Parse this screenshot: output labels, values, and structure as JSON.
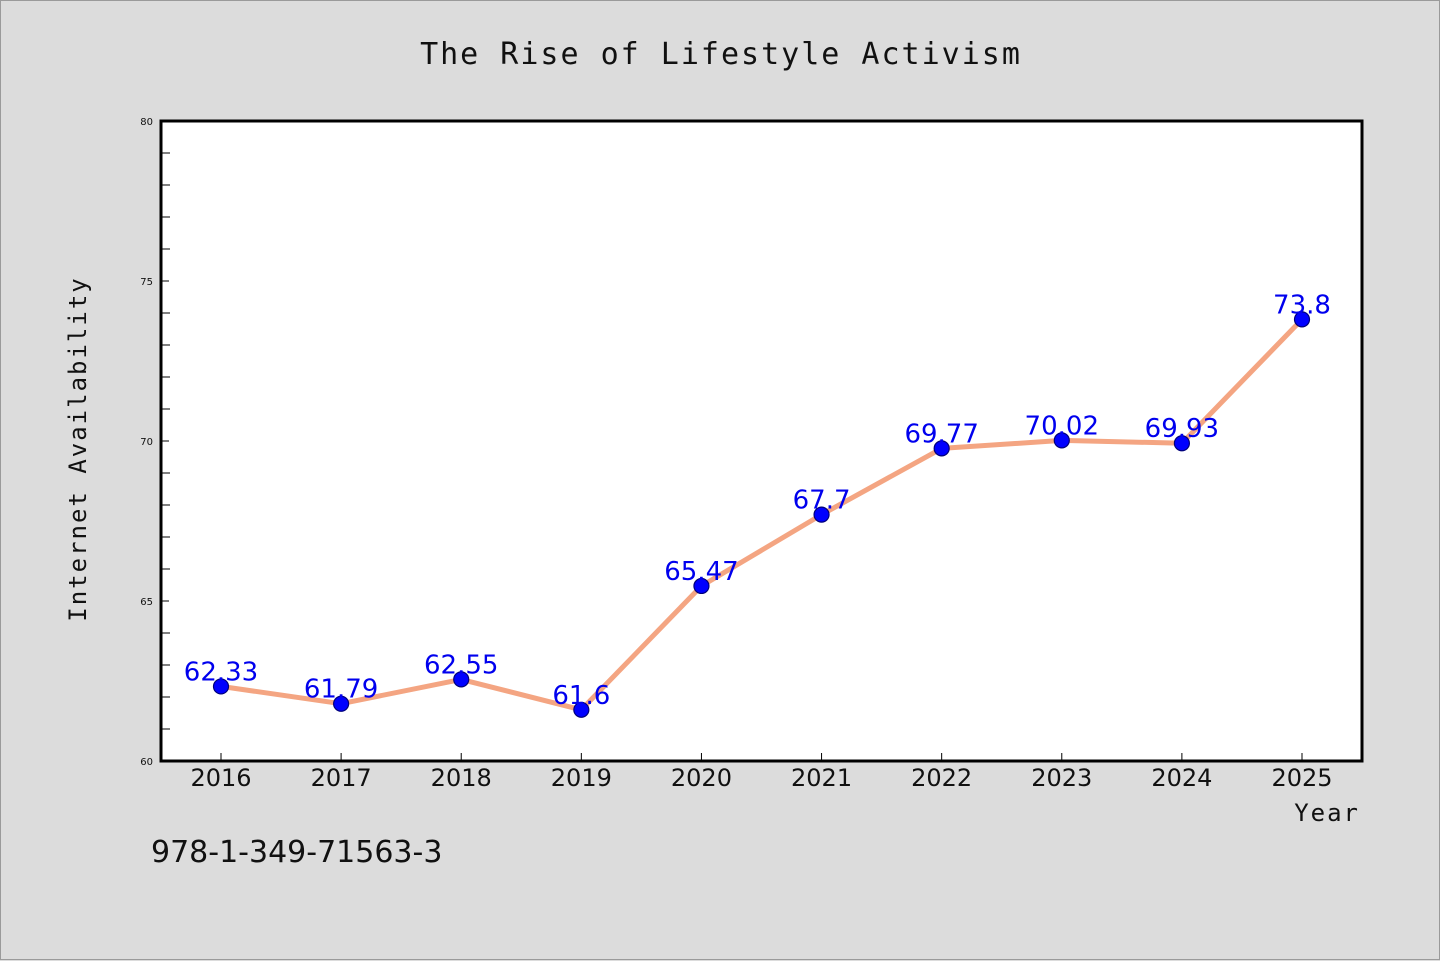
{
  "chart_data": {
    "type": "line",
    "title": "The Rise of Lifestyle Activism",
    "xlabel": "Year",
    "ylabel": "Internet Availability",
    "categories": [
      "2016",
      "2017",
      "2018",
      "2019",
      "2020",
      "2021",
      "2022",
      "2023",
      "2024",
      "2025"
    ],
    "series": [
      {
        "values": [
          62.33,
          61.79,
          62.55,
          61.6,
          65.47,
          67.7,
          69.77,
          70.02,
          69.93,
          73.8
        ],
        "labels": [
          "62.33",
          "61.79",
          "62.55",
          "61.6",
          "65.47",
          "67.7",
          "69.77",
          "70.02",
          "69.93",
          "73.8"
        ]
      }
    ],
    "ylim": [
      60,
      80
    ],
    "y_ticks": [
      60,
      65,
      70,
      75,
      80
    ],
    "grid": false,
    "legend": "none",
    "colors": {
      "line": "#f4a582",
      "marker": "#0000ff",
      "data_label": "#0000ee",
      "background": "#dcdcdc",
      "plot_background": "#ffffff"
    }
  },
  "footer": {
    "code": "978-1-349-71563-3"
  }
}
